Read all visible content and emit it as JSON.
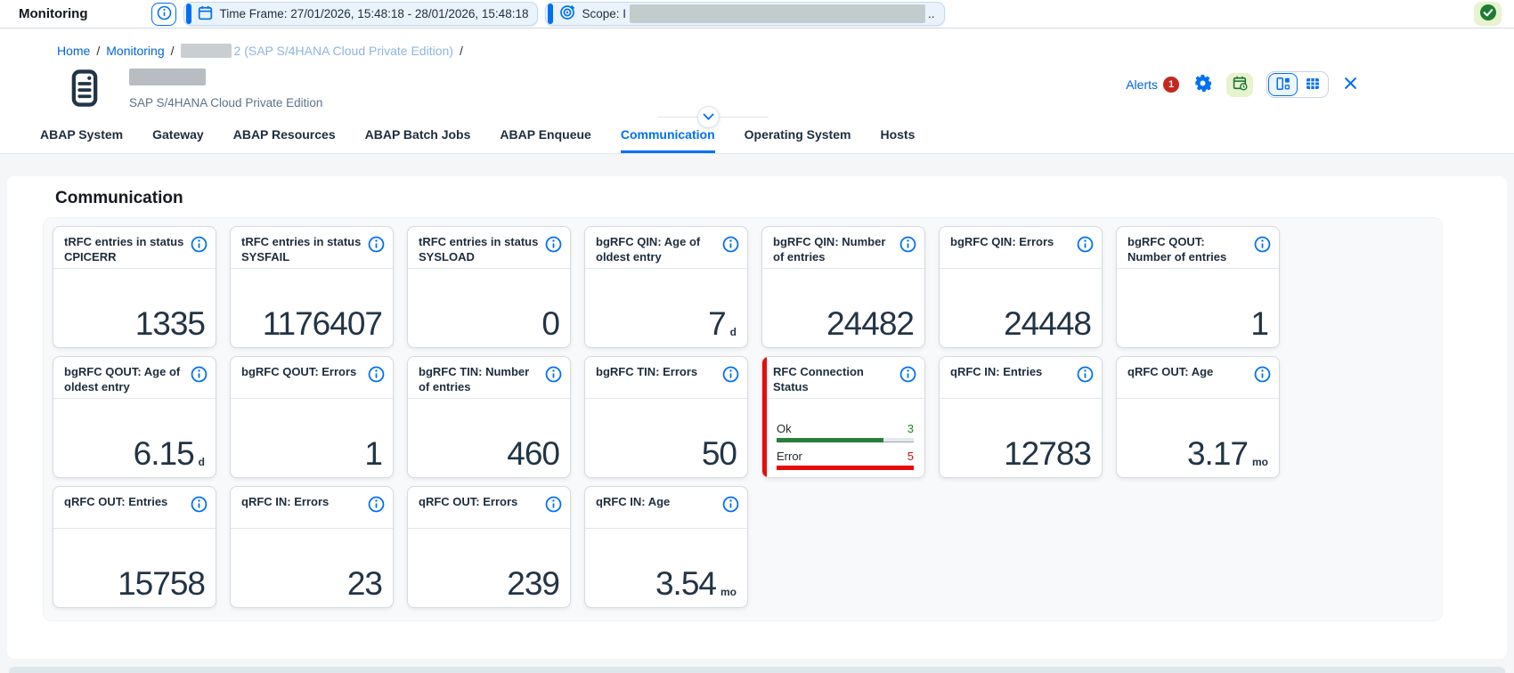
{
  "shell": {
    "title": "Monitoring",
    "time_frame": "Time Frame: 27/01/2026, 15:48:18 - 28/01/2026, 15:48:18",
    "scope_prefix": "Scope: I",
    "scope_suffix": ".."
  },
  "breadcrumb": {
    "home": "Home",
    "monitoring": "Monitoring",
    "system_suffix": "2 (SAP S/4HANA Cloud Private Edition)",
    "separator": "/"
  },
  "header": {
    "subtitle": "SAP S/4HANA Cloud Private Edition",
    "alerts_label": "Alerts",
    "alerts_count": "1"
  },
  "tabs": {
    "items": [
      "ABAP System",
      "Gateway",
      "ABAP Resources",
      "ABAP Batch Jobs",
      "ABAP Enqueue",
      "Communication",
      "Operating System",
      "Hosts"
    ],
    "active": "Communication"
  },
  "section": {
    "title": "Communication"
  },
  "tiles": [
    {
      "title": "tRFC entries in status CPICERR",
      "value": "1335",
      "unit": ""
    },
    {
      "title": "tRFC entries in status SYSFAIL",
      "value": "1176407",
      "unit": ""
    },
    {
      "title": "tRFC entries in status SYSLOAD",
      "value": "0",
      "unit": ""
    },
    {
      "title": "bgRFC QIN: Age of oldest entry",
      "value": "7",
      "unit": "d"
    },
    {
      "title": "bgRFC QIN: Number of entries",
      "value": "24482",
      "unit": ""
    },
    {
      "title": "bgRFC QIN: Errors",
      "value": "24448",
      "unit": ""
    },
    {
      "title": "bgRFC QOUT: Number of entries",
      "value": "1",
      "unit": ""
    },
    {
      "title": "bgRFC QOUT: Age of oldest entry",
      "value": "6.15",
      "unit": "d"
    },
    {
      "title": "bgRFC QOUT: Errors",
      "value": "1",
      "unit": ""
    },
    {
      "title": "bgRFC TIN: Number of entries",
      "value": "460",
      "unit": ""
    },
    {
      "title": "bgRFC TIN: Errors",
      "value": "50",
      "unit": ""
    },
    {
      "type": "status",
      "title": "RFC Connection Status",
      "accent": "negative",
      "rows": [
        {
          "label": "Ok",
          "value": "3",
          "state": "positive",
          "fill_pct": 78
        },
        {
          "label": "Error",
          "value": "5",
          "state": "negative",
          "fill_pct": 100
        }
      ]
    },
    {
      "title": "qRFC IN: Entries",
      "value": "12783",
      "unit": ""
    },
    {
      "title": "qRFC OUT: Age",
      "value": "3.17",
      "unit": "mo"
    },
    {
      "title": "qRFC OUT: Entries",
      "value": "15758",
      "unit": ""
    },
    {
      "title": "qRFC IN: Errors",
      "value": "23",
      "unit": ""
    },
    {
      "title": "qRFC OUT: Errors",
      "value": "239",
      "unit": ""
    },
    {
      "title": "qRFC IN: Age",
      "value": "3.54",
      "unit": "mo"
    }
  ],
  "colors": {
    "accent_blue": "#0070F2",
    "link_blue": "#0064D9",
    "positive_green": "#188918",
    "negative_red": "#E90B0B",
    "alert_badge_red": "#C6261C",
    "text_dark": "#1D2D3E"
  }
}
